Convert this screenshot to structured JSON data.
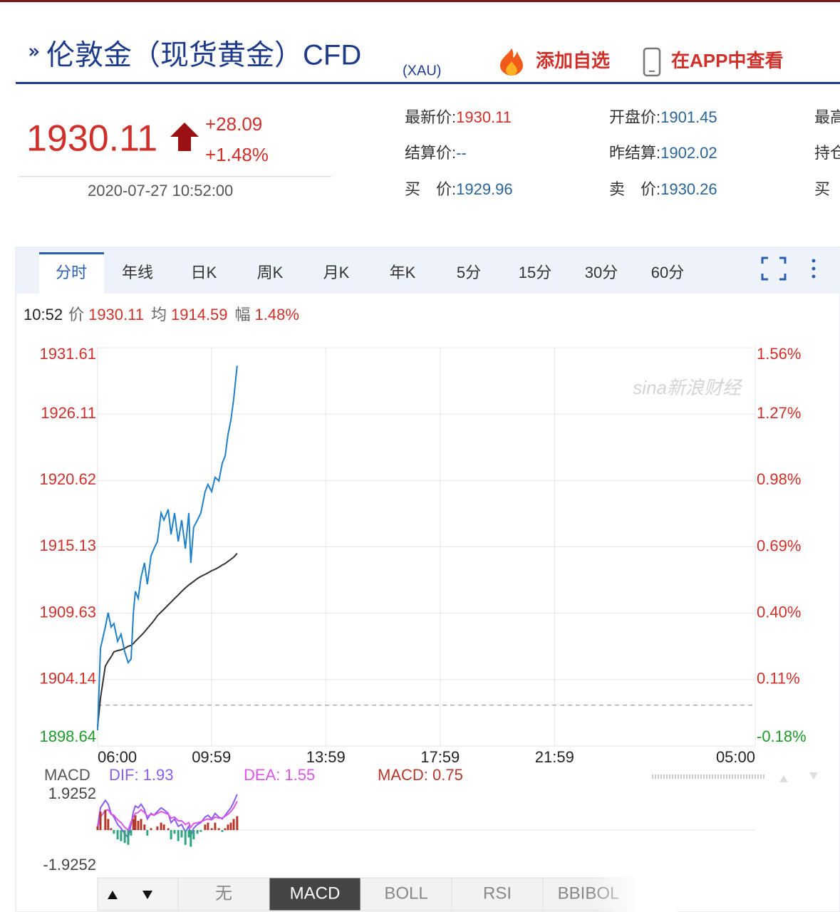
{
  "header": {
    "title": "伦敦金（现货黄金）CFD",
    "code": "(XAU)",
    "add_watch": "添加自选",
    "app": "在APP中查看"
  },
  "quote": {
    "price": "1930.11",
    "change": "+28.09",
    "change_pct": "+1.48%",
    "time": "2020-07-27 10:52:00",
    "fields": [
      [
        {
          "label": "最新价:",
          "value": "1930.11",
          "color": "#d0302a"
        },
        {
          "label": "开盘价:",
          "value": "1901.45"
        },
        {
          "label": "最高"
        }
      ],
      [
        {
          "label": "结算价:",
          "value": "--"
        },
        {
          "label": "昨结算:",
          "value": "1902.02"
        },
        {
          "label": "持仓"
        }
      ],
      [
        {
          "label": "买　价:",
          "value": "1929.96"
        },
        {
          "label": "卖　价:",
          "value": "1930.26"
        },
        {
          "label": "买"
        }
      ]
    ]
  },
  "tabs": [
    "分时",
    "年线",
    "日K",
    "周K",
    "月K",
    "年K",
    "5分",
    "15分",
    "30分",
    "60分"
  ],
  "info": {
    "time": "10:52",
    "price_label": "价",
    "price": "1930.11",
    "avg_label": "均",
    "avg": "1914.59",
    "amp_label": "幅",
    "amp": "1.48%"
  },
  "indicator_tabs": [
    "无",
    "MACD",
    "BOLL",
    "RSI",
    "BBIBOL"
  ],
  "chart_data": [
    {
      "type": "line",
      "watermark": "sina新浪财经",
      "x": [
        6.0,
        6.1,
        6.27,
        6.37,
        6.47,
        6.57,
        6.7,
        6.82,
        6.95,
        7.07,
        7.17,
        7.25,
        7.32,
        7.42,
        7.52,
        7.64,
        7.74,
        7.87,
        7.97,
        8.09,
        8.22,
        8.32,
        8.47,
        8.57,
        8.69,
        8.82,
        8.94,
        9.07,
        9.19,
        9.26,
        9.36,
        9.49,
        9.61,
        9.76,
        9.86,
        9.99,
        10.11,
        10.24,
        10.36,
        10.46,
        10.56,
        10.66,
        10.76,
        10.88
      ],
      "xlim": [
        6,
        29
      ],
      "xticks": [
        {
          "value": 6,
          "label": "06:00"
        },
        {
          "value": 9.98,
          "label": "09:59"
        },
        {
          "value": 13.98,
          "label": "13:59"
        },
        {
          "value": 17.98,
          "label": "17:59"
        },
        {
          "value": 21.98,
          "label": "21:59"
        },
        {
          "value": 29,
          "label": "05:00"
        }
      ],
      "ylim": [
        1898.64,
        1931.61
      ],
      "yticks": [
        1931.61,
        1926.11,
        1920.62,
        1915.13,
        1909.63,
        1904.14,
        1898.64
      ],
      "y2lim": [
        -0.18,
        1.56
      ],
      "y2ticks": [
        {
          "value": 1.56,
          "label": "1.56%"
        },
        {
          "value": 1.27,
          "label": "1.27%"
        },
        {
          "value": 0.98,
          "label": "0.98%"
        },
        {
          "value": 0.69,
          "label": "0.69%"
        },
        {
          "value": 0.4,
          "label": "0.40%"
        },
        {
          "value": 0.11,
          "label": "0.11%"
        },
        {
          "value": -0.18,
          "label": "-0.18%"
        }
      ],
      "base": 1902.02,
      "up_color": "#d0302a",
      "down_color": "#1e9a2a",
      "grid": true,
      "series": [
        {
          "name": "价",
          "color": "#1f80c8",
          "values": [
            1899.94,
            1906.72,
            1908.49,
            1909.67,
            1908.49,
            1908.78,
            1907.31,
            1907.9,
            1906.43,
            1905.54,
            1905.84,
            1909.67,
            1911.44,
            1910.85,
            1912.62,
            1913.8,
            1912.03,
            1914.39,
            1914.98,
            1915.57,
            1917.93,
            1917.34,
            1918.22,
            1916.16,
            1917.93,
            1915.57,
            1917.34,
            1914.98,
            1917.93,
            1913.8,
            1916.75,
            1917.34,
            1917.93,
            1919.7,
            1920.29,
            1919.7,
            1920.88,
            1920.58,
            1922.06,
            1922.64,
            1924.41,
            1925.59,
            1927.36,
            1930.11
          ]
        },
        {
          "name": "均",
          "color": "#333333",
          "values": [
            1900.23,
            1902.59,
            1905.25,
            1905.66,
            1906.01,
            1906.43,
            1906.54,
            1906.6,
            1906.72,
            1906.9,
            1906.96,
            1907.13,
            1907.31,
            1907.55,
            1907.78,
            1908.08,
            1908.37,
            1908.73,
            1909.02,
            1909.43,
            1909.73,
            1909.96,
            1910.32,
            1910.55,
            1910.85,
            1911.14,
            1911.44,
            1911.73,
            1911.97,
            1912.09,
            1912.26,
            1912.5,
            1912.68,
            1912.85,
            1912.97,
            1913.15,
            1913.27,
            1913.44,
            1913.62,
            1913.74,
            1913.92,
            1914.09,
            1914.27,
            1914.59
          ]
        }
      ]
    },
    {
      "type": "macd",
      "label": "MACD",
      "x": [
        6.0,
        6.1,
        6.27,
        6.37,
        6.47,
        6.57,
        6.7,
        6.82,
        6.95,
        7.07,
        7.17,
        7.25,
        7.32,
        7.42,
        7.52,
        7.64,
        7.74,
        7.87,
        7.97,
        8.09,
        8.22,
        8.32,
        8.47,
        8.57,
        8.69,
        8.82,
        8.94,
        9.07,
        9.19,
        9.26,
        9.36,
        9.49,
        9.61,
        9.76,
        9.86,
        9.99,
        10.11,
        10.24,
        10.36,
        10.46,
        10.56,
        10.66,
        10.76,
        10.88
      ],
      "xlim": [
        6,
        29
      ],
      "ylim": [
        -1.9252,
        1.9252
      ],
      "yticks": [
        1.9252,
        -1.9252
      ],
      "series": [
        {
          "name": "DIF: 1.93",
          "color": "#8a5cf0",
          "values": [
            0.2,
            1.2,
            1.6,
            1.4,
            0.9,
            0.7,
            0.3,
            0.1,
            -0.2,
            -0.4,
            0.3,
            1.0,
            1.3,
            1.2,
            1.4,
            1.1,
            0.6,
            0.9,
            0.8,
            1.0,
            1.2,
            1.1,
            0.9,
            0.4,
            0.6,
            0.2,
            0.3,
            -0.1,
            0.2,
            -0.3,
            0.1,
            0.3,
            0.4,
            0.7,
            0.8,
            0.6,
            0.9,
            0.7,
            0.6,
            0.8,
            1.0,
            1.2,
            1.5,
            1.93
          ]
        },
        {
          "name": "DEA: 1.55",
          "color": "#dd55e8",
          "values": [
            0.1,
            0.7,
            1.05,
            1.1,
            0.85,
            0.8,
            0.55,
            0.4,
            0.15,
            0.0,
            0.45,
            0.7,
            0.9,
            0.95,
            1.1,
            0.95,
            0.75,
            0.85,
            0.8,
            0.9,
            1.0,
            0.95,
            0.85,
            0.65,
            0.7,
            0.5,
            0.5,
            0.3,
            0.4,
            0.15,
            0.35,
            0.4,
            0.45,
            0.55,
            0.6,
            0.55,
            0.7,
            0.65,
            0.65,
            0.75,
            0.85,
            1.0,
            1.2,
            1.55
          ]
        },
        {
          "name": "MACD: 0.75",
          "color": "#b5372c",
          "negative_color": "#2fa582",
          "values": [
            0.2,
            1.0,
            1.1,
            0.6,
            0.1,
            -0.2,
            -0.5,
            -0.6,
            -0.7,
            -0.8,
            -0.3,
            0.6,
            0.8,
            0.5,
            0.6,
            0.3,
            -0.3,
            0.1,
            0.0,
            0.2,
            0.4,
            0.3,
            0.1,
            -0.5,
            -0.2,
            -0.6,
            -0.4,
            -0.8,
            -0.4,
            -0.9,
            -0.5,
            -0.2,
            -0.1,
            0.3,
            0.4,
            0.1,
            0.4,
            0.1,
            -0.1,
            0.1,
            0.3,
            0.4,
            0.6,
            0.75
          ]
        }
      ]
    }
  ]
}
